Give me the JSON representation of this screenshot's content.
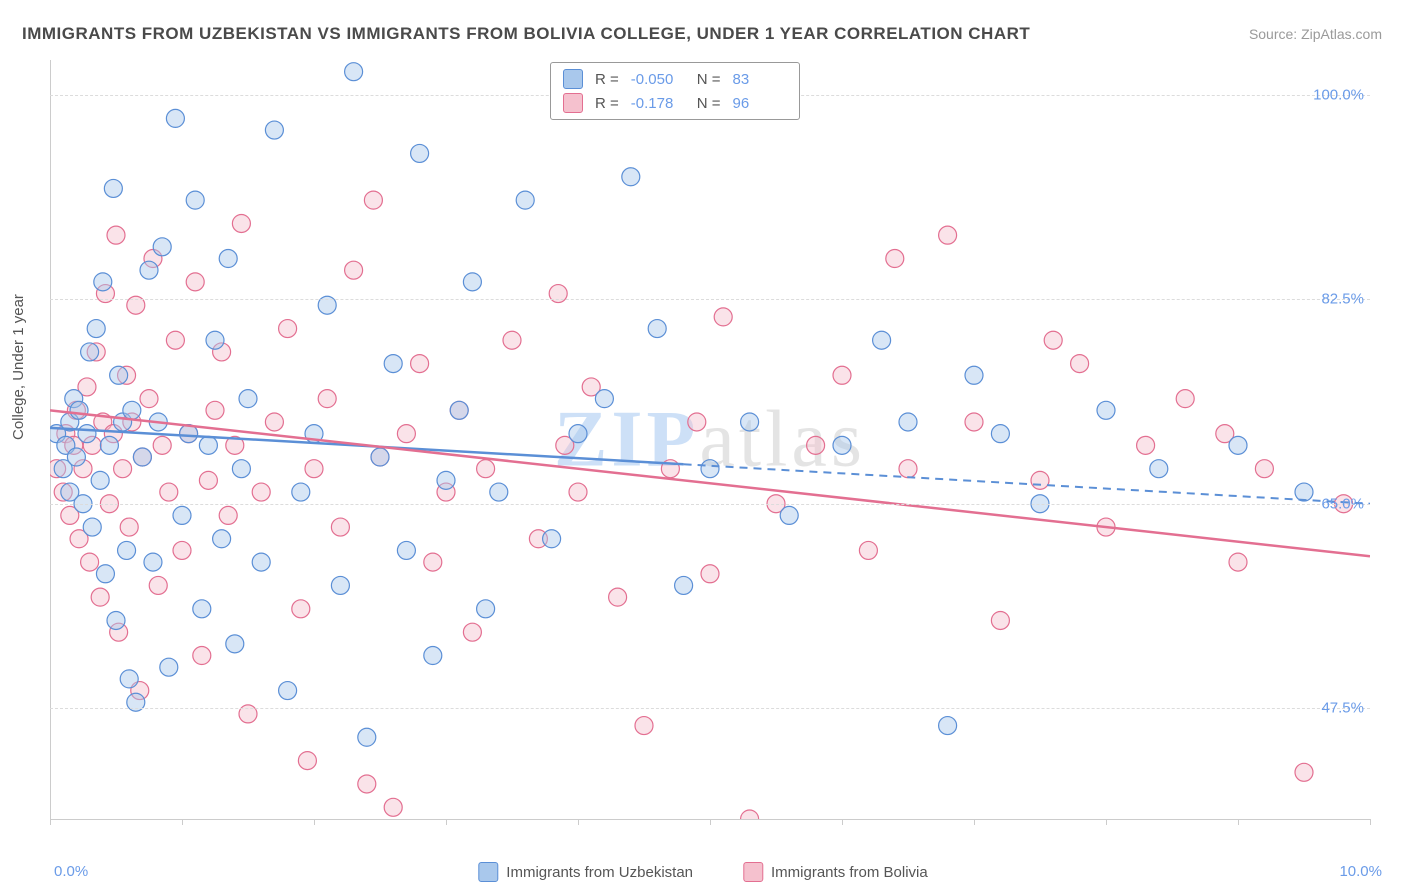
{
  "title": "IMMIGRANTS FROM UZBEKISTAN VS IMMIGRANTS FROM BOLIVIA COLLEGE, UNDER 1 YEAR CORRELATION CHART",
  "source": "Source: ZipAtlas.com",
  "ylabel": "College, Under 1 year",
  "watermark_z": "ZIP",
  "watermark_rest": "atlas",
  "chart": {
    "type": "scatter",
    "xlim": [
      0,
      10
    ],
    "ylim": [
      38,
      103
    ],
    "xaxis_min_label": "0.0%",
    "xaxis_max_label": "10.0%",
    "xtick_positions": [
      0,
      1,
      2,
      3,
      4,
      5,
      6,
      7,
      8,
      9,
      10
    ],
    "ytick_labels": [
      "47.5%",
      "65.0%",
      "82.5%",
      "100.0%"
    ],
    "ytick_values": [
      47.5,
      65.0,
      82.5,
      100.0
    ],
    "grid_color": "#dcdcdc",
    "background_color": "#ffffff",
    "point_radius": 9,
    "series": [
      {
        "name": "Immigrants from Uzbekistan",
        "color_fill": "#a9c8ec",
        "color_stroke": "#5b8fd6",
        "regression": {
          "y_at_x0": 71.5,
          "y_at_x10": 65.0,
          "solid_until_x": 4.8
        },
        "R": "-0.050",
        "N": "83",
        "points": [
          [
            0.05,
            71
          ],
          [
            0.1,
            68
          ],
          [
            0.12,
            70
          ],
          [
            0.15,
            72
          ],
          [
            0.15,
            66
          ],
          [
            0.18,
            74
          ],
          [
            0.2,
            69
          ],
          [
            0.22,
            73
          ],
          [
            0.25,
            65
          ],
          [
            0.28,
            71
          ],
          [
            0.3,
            78
          ],
          [
            0.32,
            63
          ],
          [
            0.35,
            80
          ],
          [
            0.38,
            67
          ],
          [
            0.4,
            84
          ],
          [
            0.42,
            59
          ],
          [
            0.45,
            70
          ],
          [
            0.48,
            92
          ],
          [
            0.5,
            55
          ],
          [
            0.52,
            76
          ],
          [
            0.55,
            72
          ],
          [
            0.58,
            61
          ],
          [
            0.6,
            50
          ],
          [
            0.62,
            73
          ],
          [
            0.65,
            48
          ],
          [
            0.7,
            69
          ],
          [
            0.75,
            85
          ],
          [
            0.78,
            60
          ],
          [
            0.82,
            72
          ],
          [
            0.85,
            87
          ],
          [
            0.9,
            51
          ],
          [
            0.95,
            98
          ],
          [
            1.0,
            64
          ],
          [
            1.05,
            71
          ],
          [
            1.1,
            91
          ],
          [
            1.15,
            56
          ],
          [
            1.2,
            70
          ],
          [
            1.25,
            79
          ],
          [
            1.3,
            62
          ],
          [
            1.35,
            86
          ],
          [
            1.4,
            53
          ],
          [
            1.45,
            68
          ],
          [
            1.5,
            74
          ],
          [
            1.6,
            60
          ],
          [
            1.7,
            97
          ],
          [
            1.8,
            49
          ],
          [
            1.9,
            66
          ],
          [
            2.0,
            71
          ],
          [
            2.1,
            82
          ],
          [
            2.2,
            58
          ],
          [
            2.3,
            102
          ],
          [
            2.4,
            45
          ],
          [
            2.5,
            69
          ],
          [
            2.6,
            77
          ],
          [
            2.7,
            61
          ],
          [
            2.8,
            95
          ],
          [
            2.9,
            52
          ],
          [
            3.0,
            67
          ],
          [
            3.1,
            73
          ],
          [
            3.2,
            84
          ],
          [
            3.3,
            56
          ],
          [
            3.4,
            66
          ],
          [
            3.6,
            91
          ],
          [
            3.8,
            62
          ],
          [
            4.0,
            71
          ],
          [
            4.2,
            74
          ],
          [
            4.4,
            93
          ],
          [
            4.6,
            80
          ],
          [
            4.8,
            58
          ],
          [
            5.0,
            68
          ],
          [
            5.3,
            72
          ],
          [
            5.6,
            64
          ],
          [
            6.0,
            70
          ],
          [
            6.3,
            79
          ],
          [
            6.5,
            72
          ],
          [
            6.8,
            46
          ],
          [
            7.0,
            76
          ],
          [
            7.2,
            71
          ],
          [
            7.5,
            65
          ],
          [
            8.0,
            73
          ],
          [
            8.4,
            68
          ],
          [
            9.0,
            70
          ],
          [
            9.5,
            66
          ]
        ]
      },
      {
        "name": "Immigrants from Bolivia",
        "color_fill": "#f5c1ce",
        "color_stroke": "#e36f91",
        "regression": {
          "y_at_x0": 73.0,
          "y_at_x10": 60.5,
          "solid_until_x": 10
        },
        "R": "-0.178",
        "N": "96",
        "points": [
          [
            0.05,
            68
          ],
          [
            0.1,
            66
          ],
          [
            0.12,
            71
          ],
          [
            0.15,
            64
          ],
          [
            0.18,
            70
          ],
          [
            0.2,
            73
          ],
          [
            0.22,
            62
          ],
          [
            0.25,
            68
          ],
          [
            0.28,
            75
          ],
          [
            0.3,
            60
          ],
          [
            0.32,
            70
          ],
          [
            0.35,
            78
          ],
          [
            0.38,
            57
          ],
          [
            0.4,
            72
          ],
          [
            0.42,
            83
          ],
          [
            0.45,
            65
          ],
          [
            0.48,
            71
          ],
          [
            0.5,
            88
          ],
          [
            0.52,
            54
          ],
          [
            0.55,
            68
          ],
          [
            0.58,
            76
          ],
          [
            0.6,
            63
          ],
          [
            0.62,
            72
          ],
          [
            0.65,
            82
          ],
          [
            0.68,
            49
          ],
          [
            0.7,
            69
          ],
          [
            0.75,
            74
          ],
          [
            0.78,
            86
          ],
          [
            0.82,
            58
          ],
          [
            0.85,
            70
          ],
          [
            0.9,
            66
          ],
          [
            0.95,
            79
          ],
          [
            1.0,
            61
          ],
          [
            1.05,
            71
          ],
          [
            1.1,
            84
          ],
          [
            1.15,
            52
          ],
          [
            1.2,
            67
          ],
          [
            1.25,
            73
          ],
          [
            1.3,
            78
          ],
          [
            1.35,
            64
          ],
          [
            1.4,
            70
          ],
          [
            1.45,
            89
          ],
          [
            1.5,
            47
          ],
          [
            1.6,
            66
          ],
          [
            1.7,
            72
          ],
          [
            1.8,
            80
          ],
          [
            1.9,
            56
          ],
          [
            2.0,
            68
          ],
          [
            2.1,
            74
          ],
          [
            2.2,
            63
          ],
          [
            2.3,
            85
          ],
          [
            2.4,
            41
          ],
          [
            2.5,
            69
          ],
          [
            2.6,
            39
          ],
          [
            2.7,
            71
          ],
          [
            2.8,
            77
          ],
          [
            2.9,
            60
          ],
          [
            3.0,
            66
          ],
          [
            3.1,
            73
          ],
          [
            3.2,
            54
          ],
          [
            3.3,
            68
          ],
          [
            3.5,
            79
          ],
          [
            3.7,
            62
          ],
          [
            3.9,
            70
          ],
          [
            4.1,
            75
          ],
          [
            4.3,
            57
          ],
          [
            4.5,
            46
          ],
          [
            4.7,
            68
          ],
          [
            4.9,
            72
          ],
          [
            5.1,
            81
          ],
          [
            5.3,
            38
          ],
          [
            5.5,
            65
          ],
          [
            5.8,
            70
          ],
          [
            6.0,
            76
          ],
          [
            6.2,
            61
          ],
          [
            6.5,
            68
          ],
          [
            6.8,
            88
          ],
          [
            7.0,
            72
          ],
          [
            7.2,
            55
          ],
          [
            7.5,
            67
          ],
          [
            7.8,
            77
          ],
          [
            8.0,
            63
          ],
          [
            8.3,
            70
          ],
          [
            8.6,
            74
          ],
          [
            9.0,
            60
          ],
          [
            9.2,
            68
          ],
          [
            9.5,
            42
          ],
          [
            9.8,
            65
          ],
          [
            6.4,
            86
          ],
          [
            4.0,
            66
          ],
          [
            2.45,
            91
          ],
          [
            1.95,
            43
          ],
          [
            3.85,
            83
          ],
          [
            5.0,
            59
          ],
          [
            7.6,
            79
          ],
          [
            8.9,
            71
          ]
        ]
      }
    ]
  },
  "legend_bottom": [
    {
      "key": "uzb",
      "label": "Immigrants from Uzbekistan"
    },
    {
      "key": "bol",
      "label": "Immigrants from Bolivia"
    }
  ]
}
